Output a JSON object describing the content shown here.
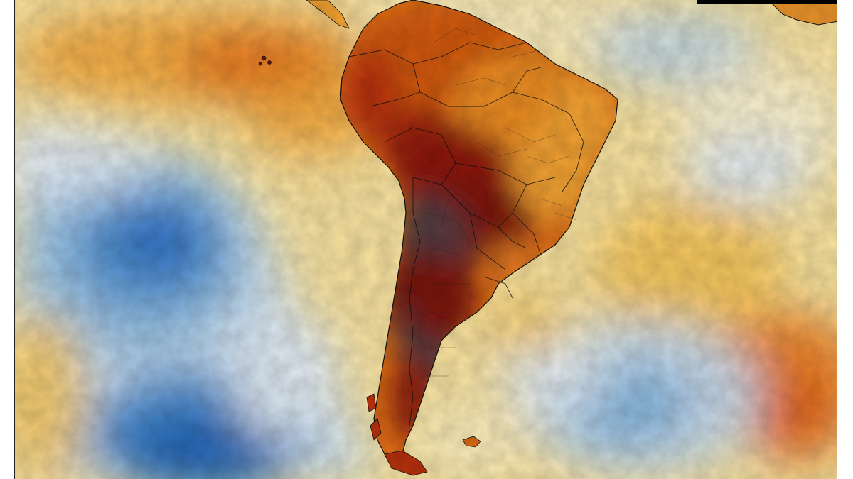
{
  "map": {
    "type": "temperature-anomaly-map",
    "region": "south-america",
    "palette": {
      "extreme_hot": "#4a3a40",
      "very_hot": "#7a1410",
      "hot": "#b8300c",
      "warm": "#e06a12",
      "mild_warm": "#f2a830",
      "slight_warm": "#f7d470",
      "neutral": "#fbf2c8",
      "slight_cool": "#dde8f2",
      "cool": "#9cc4e4",
      "cold": "#4a8fd0",
      "very_cold": "#1f5fb0"
    },
    "features": [
      "country-borders",
      "province-borders",
      "coastline"
    ]
  }
}
